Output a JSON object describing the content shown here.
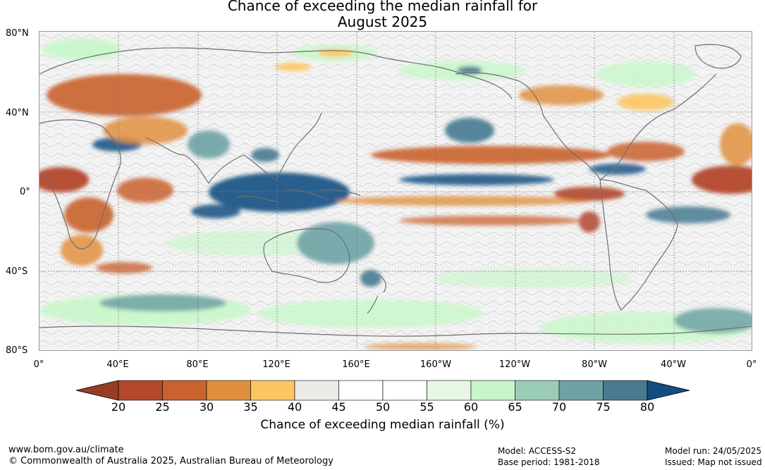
{
  "title": {
    "line1": "Chance of exceeding the median rainfall for",
    "line2": "August 2025"
  },
  "map": {
    "latitude_labels": [
      "80°N",
      "40°N",
      "0°",
      "40°S",
      "80°S"
    ],
    "longitude_labels": [
      "0°",
      "40°E",
      "80°E",
      "120°E",
      "160°E",
      "160°W",
      "120°W",
      "80°W",
      "40°W",
      "0°"
    ],
    "projection": "equirectangular",
    "lat_range": [
      -80,
      80
    ],
    "lon_start": 0
  },
  "colorbar": {
    "ticks": [
      "20",
      "25",
      "30",
      "35",
      "40",
      "45",
      "50",
      "55",
      "60",
      "65",
      "70",
      "75",
      "80"
    ],
    "colors": [
      "#b3472a",
      "#c9622e",
      "#e08f3f",
      "#fbc662",
      "#ebeae5",
      "#ffffff",
      "#ffffff",
      "#e8f6e6",
      "#c7f7c8",
      "#9bcdb6",
      "#6fa2a5",
      "#477a91"
    ],
    "low_extend_color": "#963d24",
    "high_extend_color": "#144c80",
    "label": "Chance of exceeding median rainfall (%)"
  },
  "footer": {
    "website": "www.bom.gov.au/climate",
    "copyright": "© Commonwealth of Australia 2025, Australian Bureau of Meteorology",
    "model": "Model: ACCESS-S2",
    "base_period": "Base period: 1981-2018",
    "model_run": "Model run: 24/05/2025",
    "issued": "Issued: Map not issued"
  },
  "colors": {
    "dry_strong": "#b3472a",
    "dry": "#e08f3f",
    "dry_light": "#fbc662",
    "wet_light": "#c7f7c8",
    "wet": "#6fa2a5",
    "wet_strong": "#1c5686",
    "coast": "#6e6e6e"
  }
}
